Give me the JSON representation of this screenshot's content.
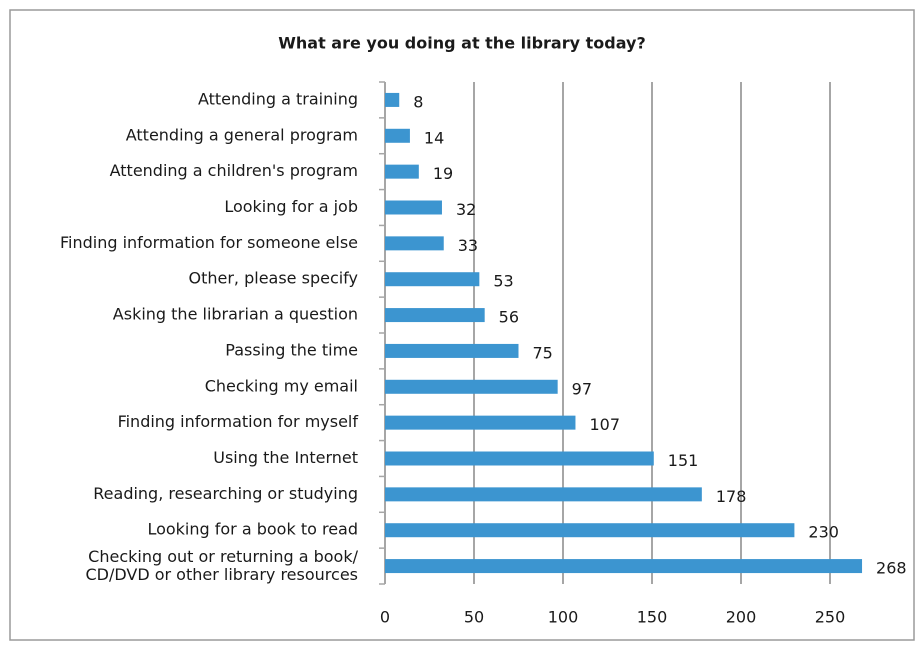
{
  "chart_data": {
    "type": "barh",
    "title": "What are you doing at the library today?",
    "categories": [
      "Attending a training",
      "Attending a general program",
      "Attending a children's program",
      "Looking for a job",
      "Finding information for someone else",
      "Other, please specify",
      "Asking the librarian a question",
      "Passing the time",
      "Checking my email",
      "Finding information for myself",
      "Using the Internet",
      "Reading, researching or studying",
      "Looking for a book to read",
      "Checking out or returning a book/\nCD/DVD or other library resources"
    ],
    "values": [
      8,
      14,
      19,
      32,
      33,
      53,
      56,
      75,
      97,
      107,
      151,
      178,
      230,
      268
    ],
    "color": "#3c95d0",
    "xlim": [
      0,
      275
    ],
    "xticks": [
      0,
      50,
      100,
      150,
      200,
      250
    ],
    "grid": true
  }
}
